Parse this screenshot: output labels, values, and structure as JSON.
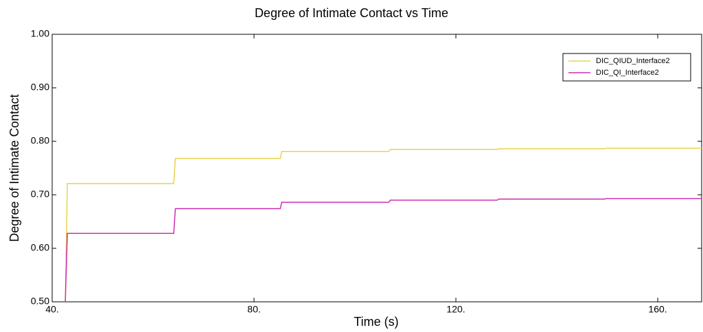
{
  "chart_data": {
    "type": "line",
    "title": "Degree of Intimate Contact vs Time",
    "x_label": "Time (s)",
    "y_label": "Degree of Intimate Contact",
    "x": [
      42.6,
      43.0,
      64.1,
      64.4,
      85.2,
      85.5,
      106.7,
      107.0,
      128.2,
      128.5,
      149.4,
      149.8,
      168.7
    ],
    "series": [
      {
        "name": "DIC_QIUD_Interface2",
        "color": "#e8d44a",
        "values": [
          0.5,
          0.721,
          0.721,
          0.768,
          0.768,
          0.781,
          0.781,
          0.785,
          0.785,
          0.786,
          0.786,
          0.787,
          0.787
        ]
      },
      {
        "name": "DIC_QI_Interface2",
        "color": "#cc2fb4",
        "values": [
          0.5,
          0.628,
          0.628,
          0.674,
          0.674,
          0.686,
          0.686,
          0.69,
          0.69,
          0.692,
          0.692,
          0.693,
          0.693
        ]
      }
    ],
    "xlim": [
      40,
      168.7
    ],
    "ylim": [
      0.5,
      1.0
    ],
    "xticks": [
      {
        "value": 40,
        "label": "40."
      },
      {
        "value": 80,
        "label": "80."
      },
      {
        "value": 120,
        "label": "120."
      },
      {
        "value": 160,
        "label": "160."
      }
    ],
    "yticks": [
      {
        "value": 0.5,
        "label": "0.50"
      },
      {
        "value": 0.6,
        "label": "0.60"
      },
      {
        "value": 0.7,
        "label": "0.70"
      },
      {
        "value": 0.8,
        "label": "0.80"
      },
      {
        "value": 0.9,
        "label": "0.90"
      },
      {
        "value": 1.0,
        "label": "1.00"
      }
    ],
    "legend": "top-right"
  }
}
